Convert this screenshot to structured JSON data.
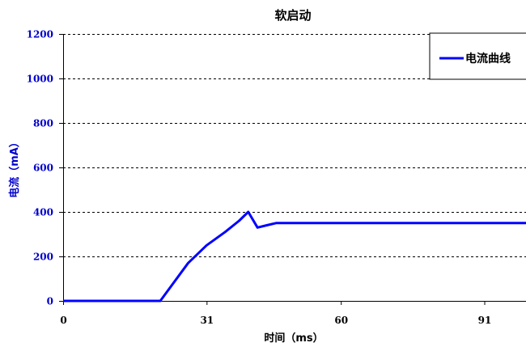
{
  "chart_data": {
    "type": "line",
    "title": "软启动",
    "xlabel": "时间（ms）",
    "ylabel": "电流（mA）",
    "xlim": [
      0,
      100
    ],
    "ylim": [
      0,
      1200
    ],
    "yticks": [
      0,
      200,
      400,
      600,
      800,
      1000,
      1200
    ],
    "xticks": [
      0,
      31,
      60,
      91
    ],
    "grid": "horizontal-dashed",
    "legend_position": "top-right",
    "series": [
      {
        "name": "电流曲线",
        "color": "#0000ff",
        "x": [
          0,
          21,
          27,
          31,
          35,
          38,
          40,
          42,
          44,
          46,
          100
        ],
        "y": [
          0,
          0,
          170,
          250,
          310,
          360,
          400,
          330,
          340,
          350,
          350
        ]
      }
    ]
  }
}
